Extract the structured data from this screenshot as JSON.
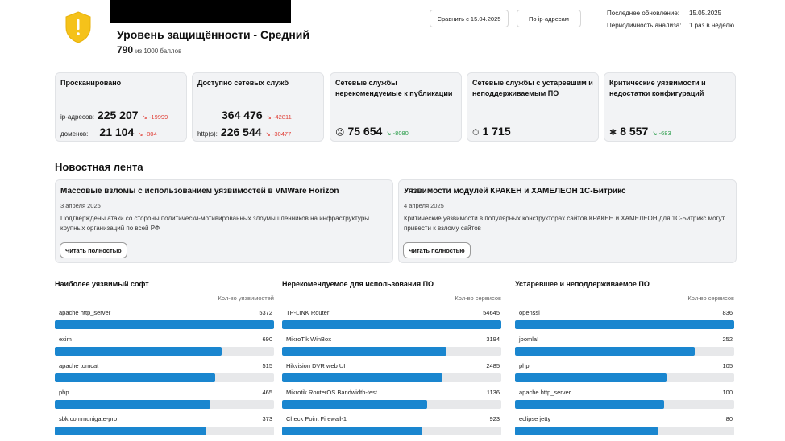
{
  "header": {
    "title": "Уровень защищённости - Средний",
    "score_value": "790",
    "score_suffix": "из 1000 баллов",
    "compare_button": "Сравнить с 15.04.2025",
    "ip_button": "По ip-адресам",
    "last_update_label": "Последнее обновление:",
    "last_update_value": "15.05.2025",
    "frequency_label": "Периодичность анализа:",
    "frequency_value": "1 раз в неделю",
    "shield_icon": "warning-shield-icon",
    "shield_color": "#f5c21a"
  },
  "cards": [
    {
      "title": "Просканировано",
      "rows": [
        {
          "label": "ip-адресов:",
          "value": "225 207",
          "delta": "↘ -19999"
        },
        {
          "label": "доменов:",
          "value": "21 104",
          "delta": "↘ -804"
        }
      ]
    },
    {
      "title": "Доступно сетевых служб",
      "rows": [
        {
          "label": "",
          "value": "364 476",
          "delta": "↘ -42811"
        },
        {
          "label": "http(s):",
          "value": "226 544",
          "delta": "↘ -30477"
        }
      ]
    },
    {
      "title": "Сетевые службы нерекомендуемые к публикации",
      "value": "75 654",
      "delta": "↘ -8080",
      "icon": "shield-face-icon"
    },
    {
      "title": "Сетевые службы с устаревшим и неподдерживаемым ПО",
      "value": "1 715",
      "icon": "timer-icon"
    },
    {
      "title": "Критические уязвимости и недостатки конфигураций",
      "value": "8 557",
      "delta": "↘ -683",
      "icon": "bug-icon"
    }
  ],
  "news": {
    "section_title": "Новостная лента",
    "items": [
      {
        "title": "Массовые взломы с использованием уязвимостей в VMWare Horizon",
        "date": "3 апреля 2025",
        "text": "Подтверждены атаки со стороны политически-мотивированных злоумышленников на инфраструктуры крупных организаций по всей РФ",
        "button": "Читать полностью"
      },
      {
        "title": "Уязвимости модулей КРАКЕН и ХАМЕЛЕОН 1С-Битрикс",
        "date": "4 апреля 2025",
        "text": "Критические уязвимости в популярных конструкторах сайтов КРАКЕН и ХАМЕЛЕОН для 1С-Битрикс могут привести к взлому сайтов",
        "button": "Читать полностью"
      }
    ]
  },
  "lists": [
    {
      "title": "Наиболее уязвимый софт",
      "column_header": "Кол-во уязвимостей",
      "items": [
        {
          "name": "apache http_server",
          "value": "5372",
          "fill": 1.0
        },
        {
          "name": "exim",
          "value": "690",
          "fill": 0.76
        },
        {
          "name": "apache tomcat",
          "value": "515",
          "fill": 0.73
        },
        {
          "name": "php",
          "value": "465",
          "fill": 0.71
        },
        {
          "name": "sbk communigate-pro",
          "value": "373",
          "fill": 0.69
        }
      ]
    },
    {
      "title": "Нерекомендуемое для использования ПО",
      "column_header": "Кол-во сервисов",
      "items": [
        {
          "name": "TP-LINK Router",
          "value": "54645",
          "fill": 1.0
        },
        {
          "name": "MikroTik WinBox",
          "value": "3194",
          "fill": 0.75
        },
        {
          "name": "Hikvision DVR web UI",
          "value": "2485",
          "fill": 0.73
        },
        {
          "name": "Mikrotik RouterOS Bandwidth-test",
          "value": "1136",
          "fill": 0.66
        },
        {
          "name": "Check Point Firewall-1",
          "value": "923",
          "fill": 0.64
        }
      ]
    },
    {
      "title": "Устаревшее и неподдерживаемое ПО",
      "column_header": "Кол-во сервисов",
      "items": [
        {
          "name": "openssl",
          "value": "836",
          "fill": 1.0
        },
        {
          "name": "joomla!",
          "value": "252",
          "fill": 0.82
        },
        {
          "name": "php",
          "value": "105",
          "fill": 0.69
        },
        {
          "name": "apache http_server",
          "value": "100",
          "fill": 0.68
        },
        {
          "name": "eclipse jetty",
          "value": "80",
          "fill": 0.65
        }
      ]
    }
  ],
  "colors": {
    "bar_fill": "#1a86cf",
    "delta_negative": "#e0423a",
    "delta_positive": "#2a9d4a"
  }
}
